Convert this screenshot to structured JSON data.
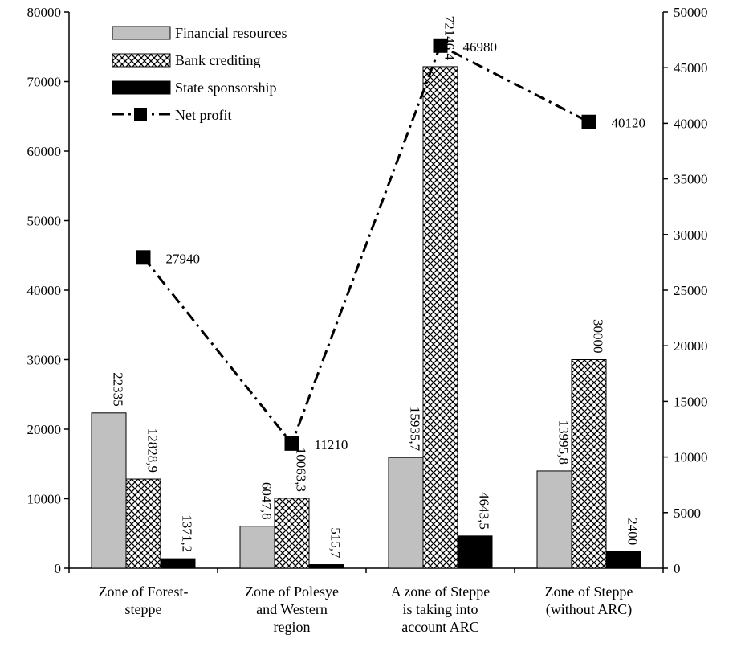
{
  "chart_data": {
    "type": "bar",
    "title": "",
    "categories": [
      [
        "Zone of Forest-",
        "steppe"
      ],
      [
        "Zone of Polesye",
        "and Western",
        "region"
      ],
      [
        "A zone of Steppe",
        "is taking into",
        "account ARC"
      ],
      [
        "Zone of Steppe",
        "(without ARC)"
      ]
    ],
    "series": [
      {
        "name": "Financial resources",
        "axis": "left",
        "kind": "bar",
        "fill": "gray",
        "values": [
          22335,
          6047.8,
          15935.7,
          13995.8
        ],
        "labels": [
          "22335",
          "6047,8",
          "15935,7",
          "13995,8"
        ]
      },
      {
        "name": "Bank crediting",
        "axis": "left",
        "kind": "bar",
        "fill": "crosshatch",
        "values": [
          12828.9,
          10063.3,
          72146.4,
          30000
        ],
        "labels": [
          "12828,9",
          "10063,3",
          "72146,4",
          "30000"
        ]
      },
      {
        "name": "State sponsorship",
        "axis": "left",
        "kind": "bar",
        "fill": "black",
        "values": [
          1371.2,
          515.7,
          4643.5,
          2400
        ],
        "labels": [
          "1371,2",
          "515,7",
          "4643,5",
          "2400"
        ]
      },
      {
        "name": "Net profit",
        "axis": "right",
        "kind": "line",
        "style": "dash-dot",
        "marker": "square",
        "values": [
          27940,
          11210,
          46980,
          40120
        ],
        "labels": [
          "27940",
          "11210",
          "46980",
          "40120"
        ]
      }
    ],
    "y_left": {
      "min": 0,
      "max": 80000,
      "step": 10000
    },
    "y_right": {
      "min": 0,
      "max": 50000,
      "step": 5000
    },
    "legend": {
      "position": "top-left",
      "entries": [
        "Financial resources",
        "Bank crediting",
        "State sponsorship",
        "Net profit"
      ]
    },
    "grid": false
  },
  "colors": {
    "financial": "#c0c0c0",
    "bank_bg": "#ffffff",
    "bank_hatch": "#000000",
    "state": "#000000",
    "line": "#000000",
    "axis": "#000000"
  }
}
